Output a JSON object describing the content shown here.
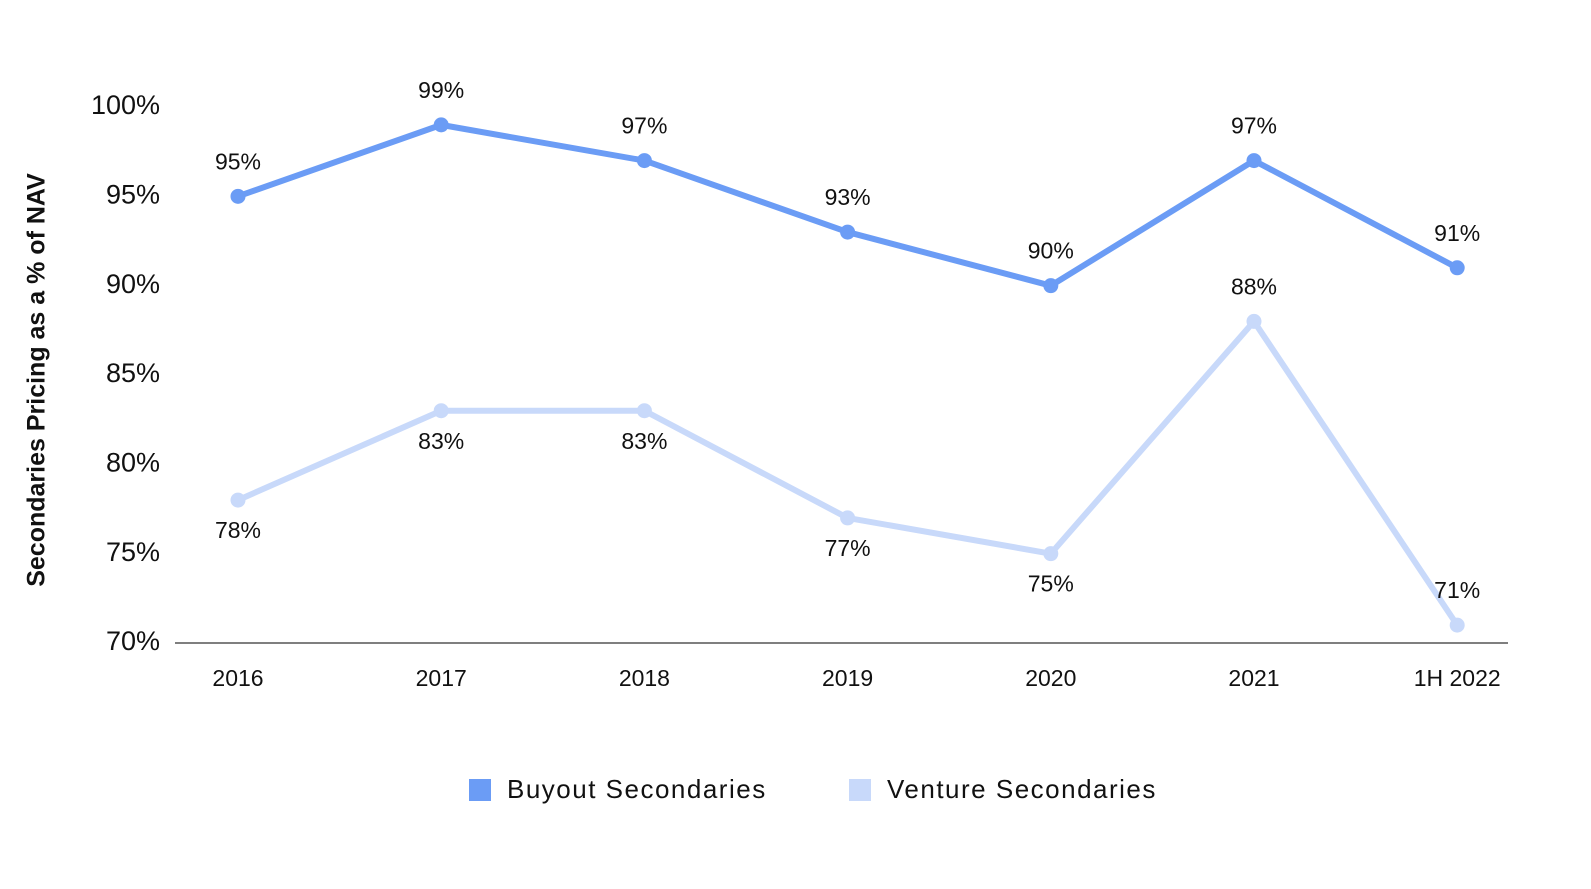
{
  "chart_data": {
    "type": "line",
    "y_axis_label": "Secondaries Pricing as a % of NAV",
    "categories": [
      "2016",
      "2017",
      "2018",
      "2019",
      "2020",
      "2021",
      "1H 2022"
    ],
    "series": [
      {
        "name": "Buyout Secondaries",
        "color": "#6b9cf5",
        "values": [
          95,
          99,
          97,
          93,
          90,
          97,
          91
        ],
        "value_labels": [
          "95%",
          "99%",
          "97%",
          "93%",
          "90%",
          "97%",
          "91%"
        ]
      },
      {
        "name": "Venture Secondaries",
        "color": "#c8d9fa",
        "values": [
          78,
          83,
          83,
          77,
          75,
          88,
          71
        ],
        "value_labels": [
          "78%",
          "83%",
          "83%",
          "77%",
          "75%",
          "88%",
          "71%"
        ]
      }
    ],
    "ylim": [
      70,
      100
    ],
    "yticks": [
      {
        "value": 70,
        "label": "70%"
      },
      {
        "value": 75,
        "label": "75%"
      },
      {
        "value": 80,
        "label": "80%"
      },
      {
        "value": 85,
        "label": "85%"
      },
      {
        "value": 90,
        "label": "90%"
      },
      {
        "value": 95,
        "label": "95%"
      },
      {
        "value": 100,
        "label": "100%"
      }
    ],
    "grid": false,
    "legend": "bottom"
  }
}
